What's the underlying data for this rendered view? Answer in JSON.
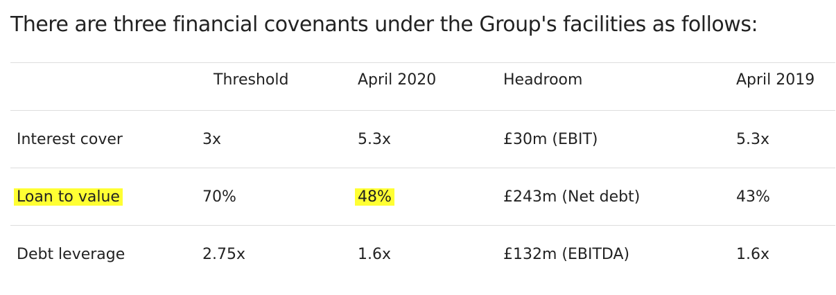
{
  "heading": "There are three financial covenants under the Group's facilities as follows:",
  "table": {
    "header": [
      "",
      "Threshold",
      "April 2020",
      "Headroom",
      "April 2019"
    ],
    "rows": [
      [
        "Interest cover",
        "3x",
        "5.3x",
        "£30m (EBIT)",
        "5.3x"
      ],
      [
        "Loan to value",
        "70%",
        "48%",
        "£243m (Net debt)",
        "43%"
      ],
      [
        "Debt leverage",
        "2.75x",
        "1.6x",
        "£132m (EBITDA)",
        "1.6x"
      ]
    ]
  }
}
